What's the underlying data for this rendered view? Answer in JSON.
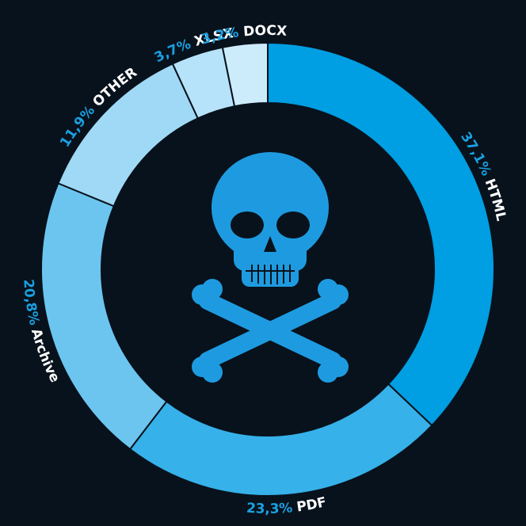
{
  "chart_data": {
    "type": "donut",
    "categories": [
      "HTML",
      "PDF",
      "Archive",
      "OTHER",
      "XLSX",
      "DOCX"
    ],
    "values": [
      37.1,
      23.3,
      20.8,
      11.9,
      3.7,
      3.2
    ],
    "value_labels": [
      "37,1%",
      "23,3%",
      "20,8%",
      "11,9%",
      "3,7%",
      "3,2%"
    ],
    "colors": [
      "#009ee2",
      "#36b1e9",
      "#6cc5ef",
      "#9fd9f6",
      "#b6e3f9",
      "#cdecfb"
    ]
  }
}
